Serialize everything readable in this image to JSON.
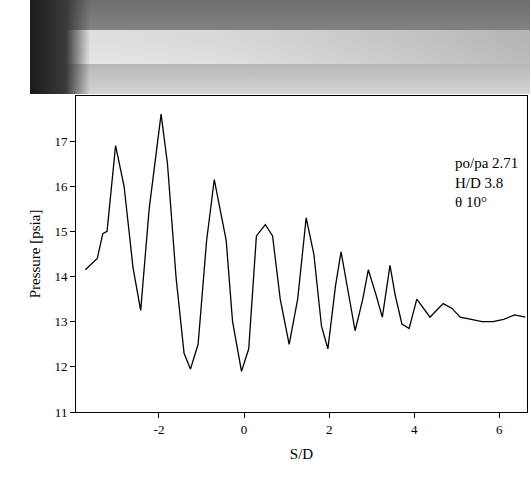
{
  "chart_data": {
    "type": "line",
    "x_label": "S/D",
    "y_label": "Pressure [psia]",
    "annotations": [
      "po/pa 2.71",
      "H/D 3.8",
      "θ 10°"
    ],
    "x": [
      -3.73,
      -3.45,
      -3.32,
      -3.22,
      -3.02,
      -2.82,
      -2.61,
      -2.43,
      -2.23,
      -1.95,
      -1.8,
      -1.6,
      -1.41,
      -1.26,
      -1.08,
      -0.88,
      -0.7,
      -0.52,
      -0.42,
      -0.27,
      -0.06,
      0.11,
      0.29,
      0.5,
      0.67,
      0.85,
      1.06,
      1.26,
      1.46,
      1.64,
      1.82,
      1.97,
      2.15,
      2.28,
      2.46,
      2.61,
      2.79,
      2.92,
      3.1,
      3.25,
      3.43,
      3.55,
      3.71,
      3.88,
      4.06,
      4.22,
      4.37,
      4.52,
      4.68,
      4.88,
      5.08,
      5.34,
      5.59,
      5.85,
      6.1,
      6.36,
      6.61
    ],
    "values": [
      14.15,
      14.4,
      14.95,
      15.0,
      16.9,
      16.0,
      14.2,
      13.25,
      15.5,
      17.6,
      16.5,
      14.0,
      12.3,
      11.95,
      12.5,
      14.8,
      16.15,
      15.3,
      14.8,
      13.0,
      11.9,
      12.4,
      14.9,
      15.15,
      14.9,
      13.5,
      12.5,
      13.5,
      15.3,
      14.5,
      12.9,
      12.4,
      13.8,
      14.55,
      13.6,
      12.8,
      13.5,
      14.15,
      13.6,
      13.1,
      14.25,
      13.6,
      12.95,
      12.85,
      13.5,
      13.3,
      13.1,
      13.25,
      13.4,
      13.3,
      13.1,
      13.05,
      13.0,
      13.0,
      13.05,
      13.15,
      13.1
    ],
    "color": "#000000",
    "xlim": [
      -3.95,
      6.65
    ],
    "xticks": [
      -2,
      0,
      2,
      4,
      6
    ],
    "ylim": [
      11,
      18
    ],
    "yticks": [
      11,
      12,
      13,
      14,
      15,
      16,
      17
    ],
    "grid": false
  }
}
